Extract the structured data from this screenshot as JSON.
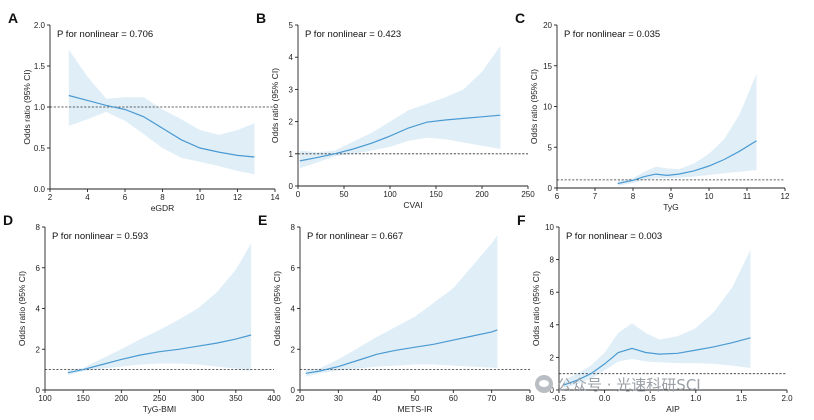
{
  "watermark": "公众号 · 光速科研SCI",
  "chart_data": [
    {
      "panel": "A",
      "type": "line",
      "xlabel": "eGDR",
      "ylabel": "Odds ratio (95% CI)",
      "p_label": "P for nonlinear = 0.706",
      "xlim": [
        2,
        14
      ],
      "ylim": [
        0,
        2.0
      ],
      "xticks": [
        "2",
        "4",
        "6",
        "8",
        "10",
        "12",
        "14"
      ],
      "xtick_values": [
        2,
        4,
        6,
        8,
        10,
        12,
        14
      ],
      "yticks": [
        "0.0",
        "0.5",
        "1.0",
        "1.5",
        "2.0"
      ],
      "ytick_values": [
        0,
        0.5,
        1.0,
        1.5,
        2.0
      ],
      "ref": 1.0,
      "x": [
        3,
        4,
        5,
        6,
        7,
        8,
        9,
        10,
        11,
        12,
        12.9
      ],
      "y": [
        1.14,
        1.08,
        1.02,
        0.97,
        0.88,
        0.74,
        0.6,
        0.5,
        0.45,
        0.41,
        0.39
      ],
      "lower": [
        0.77,
        0.85,
        0.94,
        0.83,
        0.67,
        0.5,
        0.38,
        0.33,
        0.28,
        0.22,
        0.18
      ],
      "upper": [
        1.7,
        1.37,
        1.1,
        1.12,
        1.12,
        0.97,
        0.85,
        0.72,
        0.66,
        0.72,
        0.8
      ]
    },
    {
      "panel": "B",
      "type": "line",
      "xlabel": "CVAI",
      "ylabel": "Odds ratio (95% CI)",
      "p_label": "P for nonlinear = 0.423",
      "xlim": [
        0,
        250
      ],
      "ylim": [
        0,
        5
      ],
      "xticks": [
        "0",
        "50",
        "100",
        "150",
        "200",
        "250"
      ],
      "xtick_values": [
        0,
        50,
        100,
        150,
        200,
        250
      ],
      "yticks": [
        "0",
        "1",
        "2",
        "3",
        "4",
        "5"
      ],
      "ytick_values": [
        0,
        1,
        2,
        3,
        4,
        5
      ],
      "ref": 1.0,
      "x": [
        2,
        20,
        40,
        60,
        80,
        100,
        120,
        140,
        160,
        180,
        200,
        220
      ],
      "y": [
        0.78,
        0.88,
        1.0,
        1.15,
        1.33,
        1.55,
        1.8,
        1.98,
        2.05,
        2.1,
        2.15,
        2.2
      ],
      "lower": [
        0.55,
        0.72,
        0.92,
        1.0,
        1.1,
        1.22,
        1.4,
        1.5,
        1.45,
        1.35,
        1.25,
        1.15
      ],
      "upper": [
        1.1,
        1.05,
        1.1,
        1.38,
        1.65,
        2.0,
        2.35,
        2.55,
        2.75,
        3.0,
        3.55,
        4.35
      ]
    },
    {
      "panel": "C",
      "type": "line",
      "xlabel": "TyG",
      "ylabel": "Odds ratio (95% CI)",
      "p_label": "P for nonlinear = 0.035",
      "xlim": [
        6,
        12
      ],
      "ylim": [
        0,
        20
      ],
      "xticks": [
        "6",
        "7",
        "8",
        "9",
        "10",
        "11",
        "12"
      ],
      "xtick_values": [
        6,
        7,
        8,
        9,
        10,
        11,
        12
      ],
      "yticks": [
        "0",
        "5",
        "10",
        "15",
        "20"
      ],
      "ytick_values": [
        0,
        5,
        10,
        15,
        20
      ],
      "ref": 1.0,
      "x": [
        7.6,
        8.0,
        8.3,
        8.6,
        8.9,
        9.2,
        9.6,
        10.0,
        10.4,
        10.8,
        11.25
      ],
      "y": [
        0.55,
        0.95,
        1.4,
        1.7,
        1.55,
        1.7,
        2.1,
        2.7,
        3.5,
        4.5,
        5.8
      ],
      "lower": [
        0.3,
        0.6,
        1.0,
        1.2,
        1.2,
        1.25,
        1.4,
        1.6,
        1.8,
        2.0,
        2.2
      ],
      "upper": [
        0.9,
        1.2,
        2.0,
        2.6,
        2.4,
        2.3,
        3.0,
        4.2,
        6.0,
        9.0,
        14.0
      ]
    },
    {
      "panel": "D",
      "type": "line",
      "xlabel": "TyG-BMI",
      "ylabel": "Odds ratio (95% CI)",
      "p_label": "P for nonlinear = 0.593",
      "xlim": [
        100,
        400
      ],
      "ylim": [
        0,
        8
      ],
      "xticks": [
        "100",
        "150",
        "200",
        "250",
        "300",
        "350",
        "400"
      ],
      "xtick_values": [
        100,
        150,
        200,
        250,
        300,
        350,
        400
      ],
      "yticks": [
        "0",
        "2",
        "4",
        "6",
        "8"
      ],
      "ytick_values": [
        0,
        2,
        4,
        6,
        8
      ],
      "ref": 1.0,
      "x": [
        130,
        150,
        175,
        200,
        225,
        250,
        275,
        300,
        325,
        350,
        370
      ],
      "y": [
        0.85,
        1.0,
        1.25,
        1.5,
        1.72,
        1.88,
        2.0,
        2.15,
        2.3,
        2.5,
        2.7
      ],
      "lower": [
        0.72,
        0.93,
        1.05,
        1.15,
        1.25,
        1.3,
        1.3,
        1.25,
        1.15,
        1.05,
        0.95
      ],
      "upper": [
        1.0,
        1.08,
        1.55,
        2.0,
        2.5,
        2.95,
        3.45,
        4.0,
        4.8,
        5.9,
        7.2
      ]
    },
    {
      "panel": "E",
      "type": "line",
      "xlabel": "METS-IR",
      "ylabel": "Odds ratio (95% CI)",
      "p_label": "P for nonlinear = 0.667",
      "xlim": [
        20,
        80
      ],
      "ylim": [
        0,
        8
      ],
      "xticks": [
        "20",
        "30",
        "40",
        "50",
        "60",
        "70",
        "80"
      ],
      "xtick_values": [
        20,
        30,
        40,
        50,
        60,
        70,
        80
      ],
      "yticks": [
        "0",
        "2",
        "4",
        "6",
        "8"
      ],
      "ytick_values": [
        0,
        2,
        4,
        6,
        8
      ],
      "ref": 1.0,
      "x": [
        21.5,
        25,
        30,
        35,
        40,
        45,
        50,
        55,
        60,
        65,
        70,
        71.5
      ],
      "y": [
        0.82,
        0.93,
        1.15,
        1.45,
        1.75,
        1.95,
        2.1,
        2.25,
        2.45,
        2.65,
        2.85,
        2.95
      ],
      "lower": [
        0.65,
        0.82,
        0.95,
        1.05,
        1.15,
        1.2,
        1.25,
        1.25,
        1.2,
        1.15,
        1.1,
        1.08
      ],
      "upper": [
        1.0,
        1.05,
        1.5,
        2.05,
        2.6,
        3.1,
        3.6,
        4.3,
        5.0,
        6.1,
        7.2,
        7.6
      ]
    },
    {
      "panel": "F",
      "type": "line",
      "xlabel": "AIP",
      "ylabel": "Odds ratio (95% CI)",
      "p_label": "P for nonlinear = 0.003",
      "xlim": [
        -0.5,
        2.0
      ],
      "ylim": [
        0,
        10
      ],
      "xticks": [
        "-0.5",
        "0.0",
        "0.5",
        "1.0",
        "1.5",
        "2.0"
      ],
      "xtick_values": [
        -0.5,
        0,
        0.5,
        1.0,
        1.5,
        2.0
      ],
      "yticks": [
        "0",
        "2",
        "4",
        "6",
        "8",
        "10"
      ],
      "ytick_values": [
        0,
        2,
        4,
        6,
        8,
        10
      ],
      "ref": 1.0,
      "x": [
        -0.45,
        -0.3,
        -0.15,
        0.0,
        0.15,
        0.3,
        0.45,
        0.6,
        0.8,
        1.0,
        1.2,
        1.4,
        1.6
      ],
      "y": [
        0.3,
        0.6,
        1.0,
        1.6,
        2.3,
        2.55,
        2.3,
        2.2,
        2.25,
        2.45,
        2.65,
        2.9,
        3.2
      ],
      "lower": [
        0.15,
        0.35,
        0.7,
        1.2,
        1.75,
        1.9,
        1.75,
        1.7,
        1.65,
        1.65,
        1.6,
        1.5,
        1.35
      ],
      "upper": [
        0.6,
        1.0,
        1.5,
        2.3,
        3.5,
        4.1,
        3.5,
        3.1,
        3.3,
        3.8,
        4.8,
        6.3,
        8.6
      ]
    }
  ]
}
